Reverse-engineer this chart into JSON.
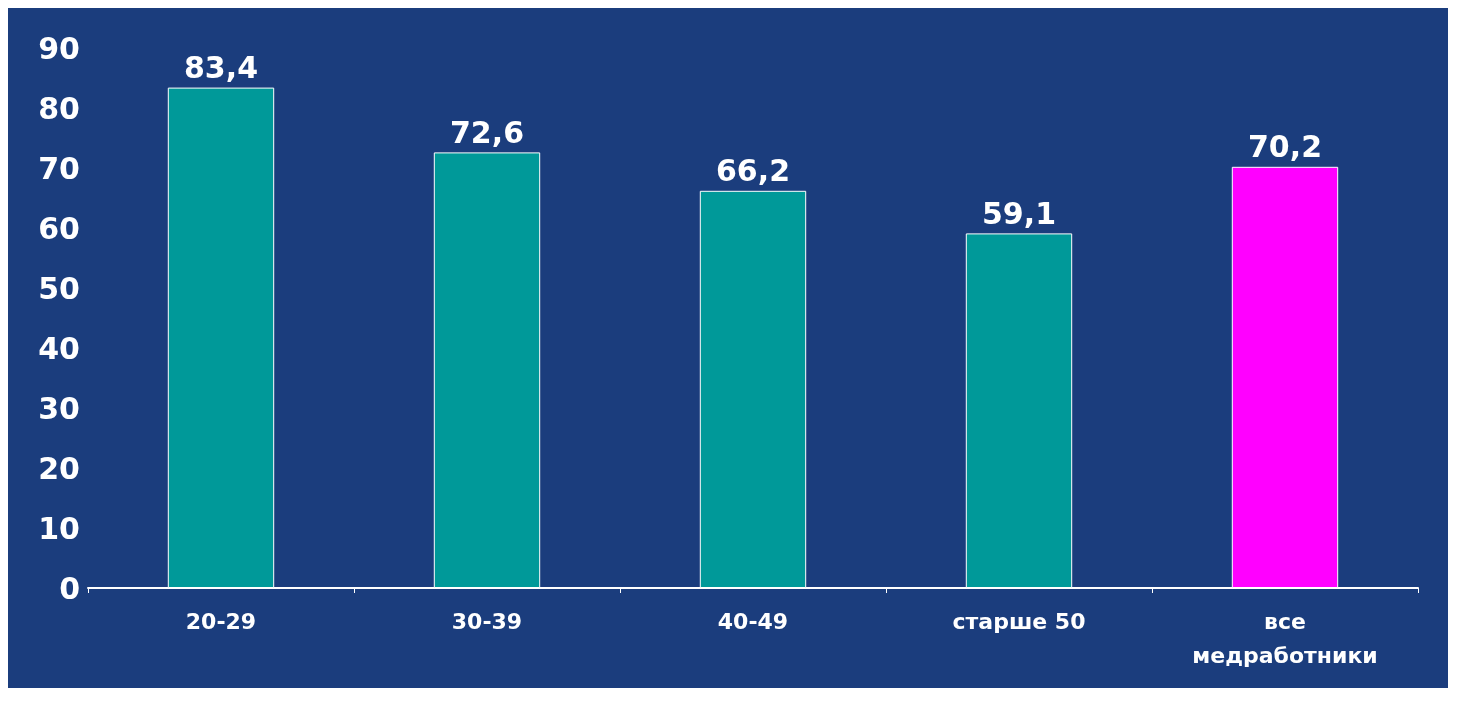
{
  "chart_data": {
    "type": "bar",
    "categories": [
      "20-29",
      "30-39",
      "40-49",
      "старше 50",
      "все медработники"
    ],
    "values": [
      83.4,
      72.6,
      66.2,
      59.1,
      70.2
    ],
    "colors": [
      "#009999",
      "#009999",
      "#009999",
      "#009999",
      "#ff00ff"
    ],
    "value_labels": [
      "83,4",
      "72,6",
      "66,2",
      "59,1",
      "70,2"
    ],
    "ylim": [
      0,
      90
    ],
    "yticks": [
      0,
      10,
      20,
      30,
      40,
      50,
      60,
      70,
      80,
      90
    ],
    "grid": false
  }
}
